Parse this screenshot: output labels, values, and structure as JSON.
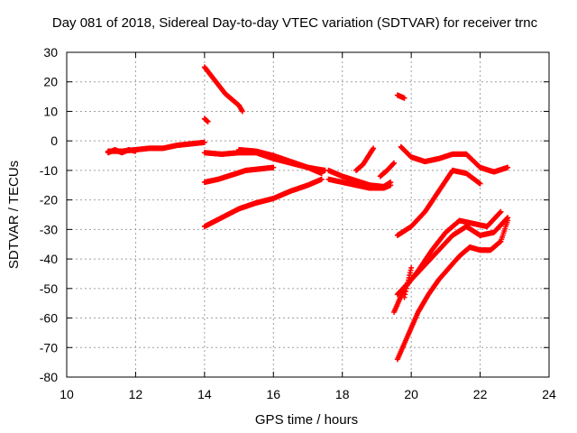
{
  "chart_data": {
    "type": "scatter",
    "title": "Day 081 of 2018, Sidereal Day-to-day VTEC variation (SDTVAR) for receiver trnc",
    "xlabel": "GPS time / hours",
    "ylabel": "SDTVAR / TECUs",
    "xlim": [
      10,
      24
    ],
    "ylim": [
      -80,
      30
    ],
    "xticks": [
      10,
      12,
      14,
      16,
      18,
      20,
      22,
      24
    ],
    "yticks": [
      -80,
      -70,
      -60,
      -50,
      -40,
      -30,
      -20,
      -10,
      0,
      10,
      20,
      30
    ],
    "grid": true,
    "marker": "+",
    "color": "#ff0000",
    "series": [
      {
        "x": [
          11.2,
          11.6,
          12.0,
          12.4,
          12.8,
          13.2,
          13.6,
          14.0
        ],
        "y": [
          -3.5,
          -3.5,
          -3.0,
          -2.5,
          -2.5,
          -1.5,
          -1.0,
          -0.5
        ]
      },
      {
        "x": [
          11.2,
          11.4,
          11.6,
          11.8,
          12.0
        ],
        "y": [
          -4.0,
          -3.0,
          -4.0,
          -3.0,
          -3.5
        ]
      },
      {
        "x": [
          14.0,
          14.2,
          14.4,
          14.6,
          14.8,
          15.0,
          15.1
        ],
        "y": [
          25,
          22,
          19,
          16,
          14,
          12,
          10
        ]
      },
      {
        "x": [
          14.0,
          14.1
        ],
        "y": [
          7.5,
          6.5
        ]
      },
      {
        "x": [
          14.0,
          14.5,
          15.0,
          15.5,
          16.0,
          16.5,
          17.0,
          17.5
        ],
        "y": [
          -4,
          -4.5,
          -4,
          -4,
          -6,
          -7.5,
          -9,
          -10
        ]
      },
      {
        "x": [
          15.0,
          15.5,
          16.0,
          16.5,
          17.0,
          17.4
        ],
        "y": [
          -3,
          -3.5,
          -5,
          -7,
          -9,
          -11
        ]
      },
      {
        "x": [
          14.0,
          14.4,
          14.8,
          15.2,
          15.6,
          16.0
        ],
        "y": [
          -14,
          -13,
          -11.5,
          -10,
          -9.5,
          -9
        ]
      },
      {
        "x": [
          14.0,
          14.5,
          15.0,
          15.5,
          16.0,
          16.5,
          17.0,
          17.4
        ],
        "y": [
          -29,
          -26,
          -23,
          -21,
          -19.5,
          -17,
          -15,
          -13
        ]
      },
      {
        "x": [
          17.6,
          18.0,
          18.4,
          18.8,
          19.2,
          19.4
        ],
        "y": [
          -10,
          -12,
          -13.5,
          -15,
          -15.5,
          -14
        ]
      },
      {
        "x": [
          17.6,
          18.0,
          18.4,
          18.8,
          19.2,
          19.4
        ],
        "y": [
          -13,
          -14,
          -15,
          -16,
          -16,
          -15
        ]
      },
      {
        "x": [
          18.4,
          18.6,
          18.9
        ],
        "y": [
          -10,
          -8,
          -2.5
        ]
      },
      {
        "x": [
          19.1,
          19.3,
          19.5
        ],
        "y": [
          -12,
          -10,
          -7.5
        ]
      },
      {
        "x": [
          19.6,
          19.8
        ],
        "y": [
          15.5,
          14.5
        ]
      },
      {
        "x": [
          19.7,
          20.0,
          20.4,
          20.8,
          21.2,
          21.6,
          22.0,
          22.4,
          22.8
        ],
        "y": [
          -2,
          -5.5,
          -7,
          -6,
          -4.5,
          -4.5,
          -9,
          -10.5,
          -9
        ]
      },
      {
        "x": [
          21.2,
          21.6,
          22.0
        ],
        "y": [
          -10,
          -11,
          -14.5
        ]
      },
      {
        "x": [
          19.6,
          20.0,
          20.4,
          20.8,
          21.2
        ],
        "y": [
          -32,
          -29,
          -24,
          -17,
          -10
        ]
      },
      {
        "x": [
          19.5,
          19.8,
          20.2,
          20.6,
          21.0,
          21.4,
          21.8,
          22.2,
          22.6
        ],
        "y": [
          -58,
          -50,
          -44,
          -37,
          -31,
          -27,
          -28,
          -29,
          -24
        ]
      },
      {
        "x": [
          19.8,
          19.9,
          20.0
        ],
        "y": [
          -53,
          -48,
          -43
        ]
      },
      {
        "x": [
          19.6,
          20.0,
          20.4,
          20.8,
          21.2,
          21.6,
          22.0,
          22.4,
          22.8
        ],
        "y": [
          -52,
          -47,
          -42,
          -37,
          -32,
          -29,
          -32,
          -31,
          -26
        ]
      },
      {
        "x": [
          19.6,
          19.9,
          20.2,
          20.5,
          20.8,
          21.1,
          21.4,
          21.7,
          22.0,
          22.3,
          22.6,
          22.8
        ],
        "y": [
          -74,
          -66,
          -58,
          -52,
          -47,
          -43,
          -39,
          -36,
          -37,
          -37,
          -34,
          -27
        ]
      }
    ]
  }
}
